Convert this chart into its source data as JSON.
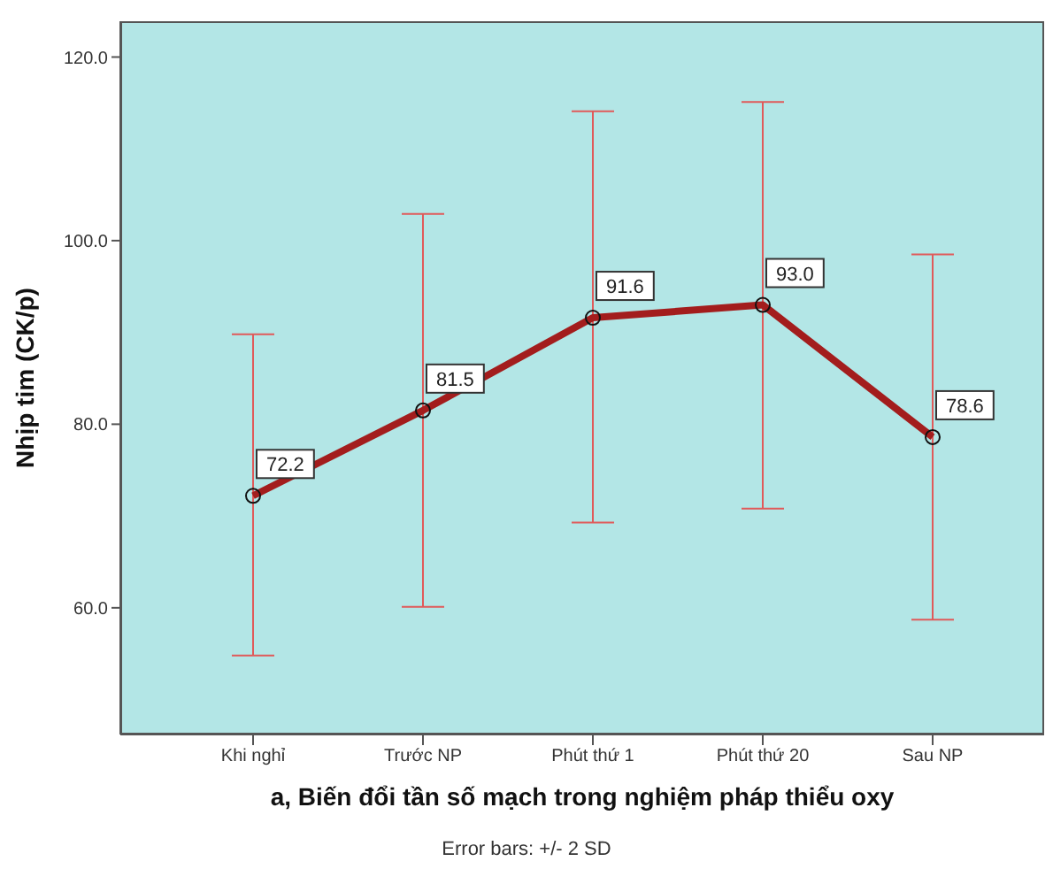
{
  "chart_data": {
    "type": "line",
    "xlabel": "a, Biến đổi tần số mạch trong nghiệm pháp thiểu oxy",
    "ylabel": "Nhịp tim (CK/p)",
    "categories": [
      "Khi nghỉ",
      "Trước NP",
      "Phút thứ 1",
      "Phút thứ 20",
      "Sau NP"
    ],
    "series": [
      {
        "color": "#a31d1d",
        "values": [
          72.2,
          81.5,
          91.6,
          93.0,
          78.6
        ],
        "value_labels": [
          "72.2",
          "81.5",
          "91.6",
          "93.0",
          "78.6"
        ],
        "errors": [
          [
            54.8,
            89.8
          ],
          [
            60.1,
            102.9
          ],
          [
            69.3,
            114.1
          ],
          [
            70.8,
            115.1
          ],
          [
            58.7,
            98.5
          ]
        ]
      }
    ],
    "ylim": [
      46.2,
      123.9
    ],
    "yticks": [
      {
        "value": 60,
        "label": "60.0"
      },
      {
        "value": 80,
        "label": "80.0"
      },
      {
        "value": 100,
        "label": "100.0"
      },
      {
        "value": 120,
        "label": "120.0"
      }
    ],
    "marker": "circle",
    "line_style": "solid",
    "annotations": [
      "Error bars: +/- 2 SD"
    ]
  }
}
